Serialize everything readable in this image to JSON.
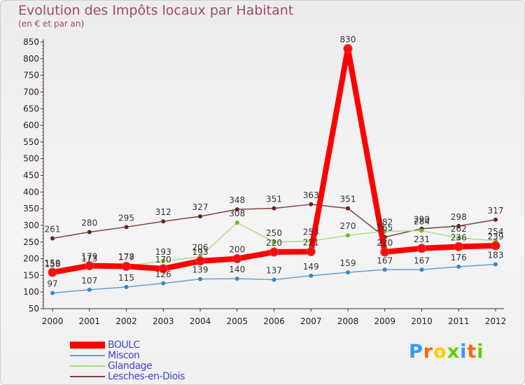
{
  "header": {
    "title": "Evolution des Impôts locaux par Habitant",
    "subtitle": "(en € et par an)"
  },
  "logo": {
    "text": "Proxiti",
    "letters": [
      "P",
      "r",
      "o",
      "x",
      "i",
      "t",
      "i"
    ],
    "colors": [
      "#3399ff",
      "#ff6600",
      "#ffcc00",
      "#66cc00",
      "#3399ff",
      "#ff6600",
      "#66cc00"
    ]
  },
  "chart_data": {
    "type": "line",
    "title": "Evolution des Impôts locaux par Habitant",
    "subtitle": "(en € et par an)",
    "x": [
      "2000",
      "2001",
      "2002",
      "2003",
      "2004",
      "2005",
      "2006",
      "2007",
      "2008",
      "2009",
      "2010",
      "2011",
      "2012"
    ],
    "ylim": [
      50,
      850
    ],
    "yticks": [
      50,
      100,
      150,
      200,
      250,
      300,
      350,
      400,
      450,
      500,
      550,
      600,
      650,
      700,
      750,
      800,
      850
    ],
    "grid": false,
    "legend_position": "bottom-left",
    "series": [
      {
        "name": "BOULC",
        "values": [
          159,
          179,
          177,
          170,
          193,
          200,
          220,
          221,
          830,
          220,
          231,
          236,
          239
        ],
        "color": "#ff0000",
        "marker": "#ee1111"
      },
      {
        "name": "Miscon",
        "values": [
          97,
          107,
          115,
          126,
          139,
          140,
          137,
          149,
          159,
          167,
          167,
          176,
          183
        ],
        "color": "#6a9fcf",
        "marker": "#3a86c8"
      },
      {
        "name": "Glandage",
        "values": [
          156,
          173,
          178,
          193,
          206,
          308,
          250,
          253,
          270,
          282,
          284,
          262,
          254
        ],
        "color": "#aadd88",
        "marker": "#66bb22"
      },
      {
        "name": "Lesches-en-Diois",
        "values": [
          261,
          280,
          295,
          312,
          327,
          348,
          351,
          363,
          351,
          265,
          290,
          298,
          317
        ],
        "color": "#804040",
        "marker": "#6b2222"
      }
    ]
  }
}
